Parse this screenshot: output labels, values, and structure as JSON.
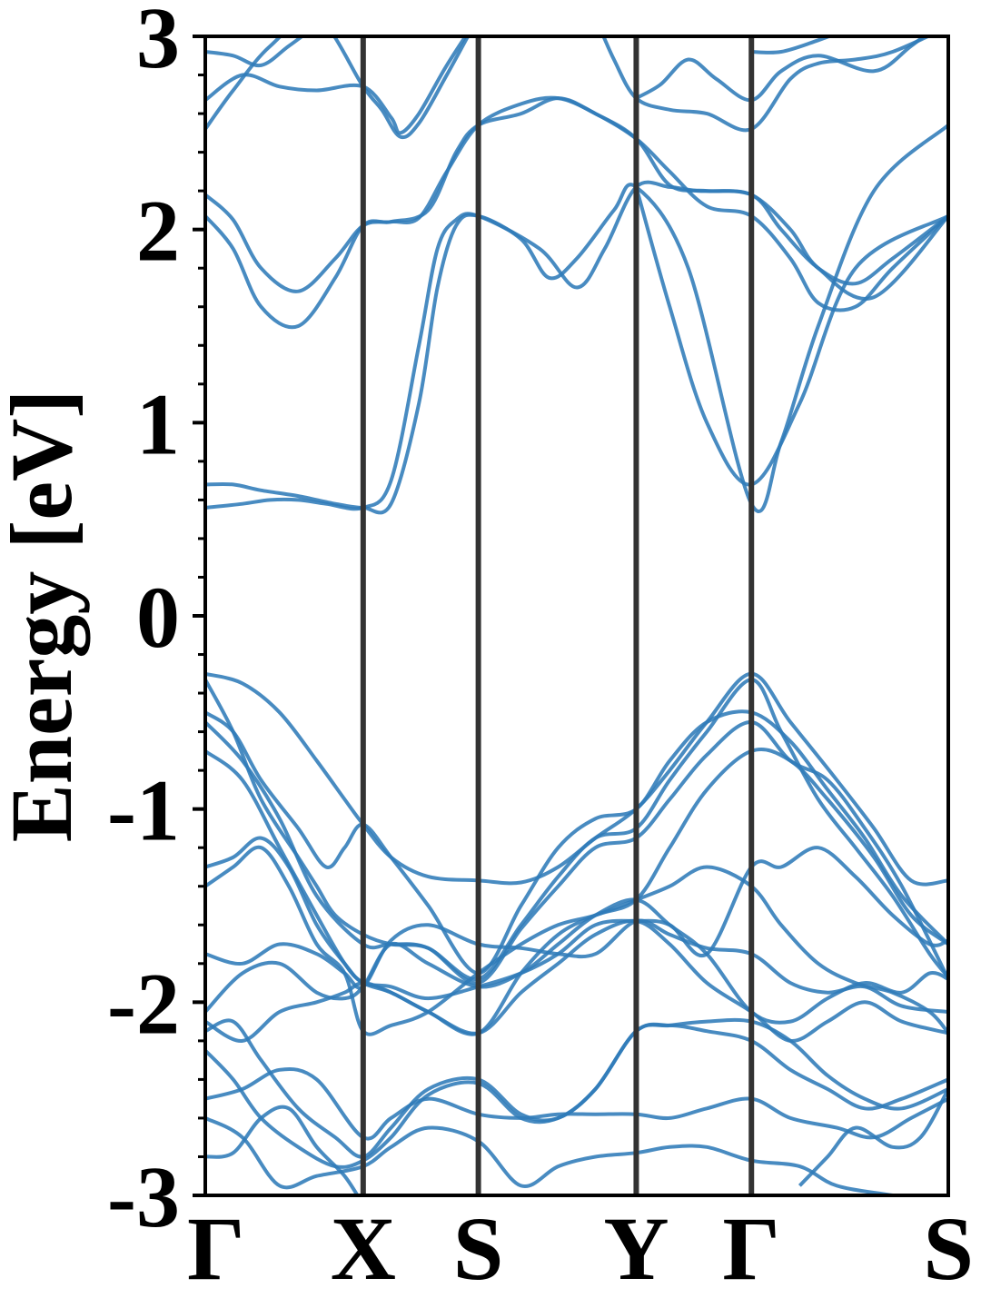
{
  "chart_data": {
    "type": "line",
    "title": "",
    "xlabel": "",
    "ylabel": "Energy [eV]",
    "ylim": [
      -3,
      3
    ],
    "yticks": [
      -3,
      -2,
      -1,
      0,
      1,
      2,
      3
    ],
    "ytick_labels": [
      "-3",
      "-2",
      "-1",
      "0",
      "1",
      "2",
      "3"
    ],
    "kpath": {
      "labels": [
        "Γ",
        "X",
        "S",
        "Y",
        "Γ",
        "S"
      ],
      "positions": [
        0,
        0.85,
        1.47,
        2.32,
        2.94,
        4.0
      ]
    },
    "grid": false,
    "legend": "none",
    "colors": {
      "band": "#2f7bb8",
      "kline": "#333333",
      "axes": "#000000"
    },
    "series": [
      {
        "x": [
          0,
          0.2,
          0.35,
          0.5,
          0.65,
          0.85,
          1.0,
          1.15,
          1.25,
          1.35,
          1.47,
          1.8,
          2.0,
          2.15,
          2.32,
          2.5,
          2.65,
          2.94,
          3.1,
          3.3,
          3.5,
          3.7,
          4.0
        ],
        "y": [
          0.56,
          0.58,
          0.6,
          0.6,
          0.58,
          0.56,
          0.7,
          1.4,
          1.9,
          2.05,
          2.07,
          1.9,
          1.7,
          1.9,
          2.22,
          2.22,
          2.2,
          2.18,
          2.0,
          1.8,
          1.72,
          1.85,
          2.07
        ]
      },
      {
        "x": [
          0,
          0.15,
          0.3,
          0.5,
          0.7,
          0.85,
          1.0,
          1.15,
          1.25,
          1.35,
          1.47,
          1.7,
          1.85,
          2.0,
          2.2,
          2.32,
          2.6,
          2.94,
          3.1,
          3.3,
          3.6,
          4.0
        ],
        "y": [
          0.68,
          0.68,
          0.65,
          0.62,
          0.58,
          0.56,
          0.58,
          1.1,
          1.7,
          2.02,
          2.07,
          1.95,
          1.75,
          1.85,
          2.1,
          2.22,
          1.8,
          0.58,
          0.9,
          1.5,
          2.2,
          2.54
        ]
      },
      {
        "x": [
          2.32,
          2.5,
          2.7,
          2.94,
          3.2,
          3.5,
          4.0
        ],
        "y": [
          2.22,
          1.6,
          1.0,
          0.68,
          1.1,
          1.8,
          2.07
        ]
      },
      {
        "x": [
          0,
          0.15,
          0.3,
          0.5,
          0.7,
          0.85,
          1.0,
          1.2,
          1.35,
          1.47,
          1.7,
          1.9,
          2.1,
          2.32,
          2.5,
          2.7,
          2.94,
          3.15,
          3.3,
          3.5,
          3.7,
          4.0
        ],
        "y": [
          2.07,
          1.9,
          1.6,
          1.5,
          1.75,
          2.02,
          2.04,
          2.1,
          2.4,
          2.54,
          2.6,
          2.68,
          2.6,
          2.47,
          2.3,
          2.12,
          2.07,
          1.85,
          1.62,
          1.6,
          1.8,
          2.07
        ]
      },
      {
        "x": [
          0,
          0.15,
          0.3,
          0.5,
          0.7,
          0.85,
          1.0,
          1.15,
          1.3,
          1.47,
          1.7,
          1.9,
          2.1,
          2.32,
          2.5,
          2.7,
          2.94,
          3.15,
          3.3,
          3.6,
          4.0
        ],
        "y": [
          2.18,
          2.05,
          1.8,
          1.68,
          1.85,
          2.02,
          2.04,
          2.06,
          2.3,
          2.54,
          2.65,
          2.68,
          2.6,
          2.47,
          2.23,
          2.2,
          2.18,
          2.0,
          1.8,
          1.65,
          2.07
        ]
      },
      {
        "x": [
          0,
          0.2,
          0.4,
          0.6,
          0.85,
          1.0,
          1.05,
          1.15,
          1.3,
          1.47
        ],
        "y": [
          2.67,
          2.8,
          2.74,
          2.72,
          2.74,
          2.58,
          2.5,
          2.6,
          2.85,
          3.1
        ]
      },
      {
        "x": [
          0,
          0.15,
          0.35,
          0.6,
          0.85,
          0.95,
          1.05,
          1.15,
          1.3,
          1.47
        ],
        "y": [
          2.52,
          2.72,
          2.95,
          3.1,
          2.74,
          2.62,
          2.48,
          2.55,
          2.8,
          3.1
        ]
      },
      {
        "x": [
          0,
          0.15,
          0.3,
          0.45,
          0.6,
          0.75
        ],
        "y": [
          2.92,
          2.9,
          2.85,
          2.95,
          3.05,
          3.1
        ]
      },
      {
        "x": [
          2.1,
          2.2,
          2.32,
          2.5,
          2.7,
          2.94,
          3.15,
          3.3,
          3.5,
          3.7,
          4.0
        ],
        "y": [
          3.1,
          2.88,
          2.68,
          2.62,
          2.6,
          2.52,
          2.78,
          2.86,
          2.88,
          2.92,
          3.05
        ]
      },
      {
        "x": [
          2.32,
          2.45,
          2.6,
          2.75,
          2.94,
          3.1,
          3.3,
          3.6,
          3.8,
          4.0
        ],
        "y": [
          2.68,
          2.75,
          2.88,
          2.78,
          2.67,
          2.82,
          2.9,
          2.82,
          2.95,
          3.1
        ]
      },
      {
        "x": [
          2.94,
          3.1,
          3.3,
          3.5,
          3.7
        ],
        "y": [
          2.92,
          2.92,
          2.98,
          3.05,
          3.1
        ]
      },
      {
        "x": [
          0,
          0.2,
          0.4,
          0.6,
          0.75,
          0.85,
          1.0,
          1.2,
          1.47,
          1.7,
          1.9,
          2.1,
          2.32,
          2.5,
          2.7,
          2.94,
          3.15,
          3.4,
          3.6,
          3.8,
          4.0
        ],
        "y": [
          -0.3,
          -0.35,
          -0.5,
          -0.75,
          -0.95,
          -1.08,
          -1.25,
          -1.35,
          -1.37,
          -1.38,
          -1.3,
          -1.15,
          -1.0,
          -0.8,
          -0.55,
          -0.3,
          -0.55,
          -0.85,
          -1.1,
          -1.37,
          -1.37
        ]
      },
      {
        "x": [
          0,
          0.15,
          0.3,
          0.5,
          0.6,
          0.7,
          0.85,
          1.0,
          1.2,
          1.47,
          1.7,
          1.9,
          2.1,
          2.32,
          2.5,
          2.7,
          2.94,
          3.1,
          3.3,
          3.5,
          3.7,
          3.9,
          4.0
        ],
        "y": [
          -0.33,
          -0.6,
          -0.95,
          -1.25,
          -1.4,
          -1.55,
          -1.65,
          -1.7,
          -1.72,
          -1.88,
          -1.6,
          -1.35,
          -1.15,
          -1.1,
          -0.85,
          -0.6,
          -0.33,
          -0.6,
          -0.95,
          -1.2,
          -1.45,
          -1.75,
          -1.87
        ]
      },
      {
        "x": [
          0,
          0.15,
          0.3,
          0.5,
          0.65,
          0.75,
          0.85,
          1.0,
          1.2,
          1.47,
          1.7,
          1.9,
          2.1,
          2.32,
          2.5,
          2.7,
          2.94,
          3.15,
          3.35,
          3.55,
          3.75,
          4.0
        ],
        "y": [
          -0.5,
          -0.6,
          -0.85,
          -1.1,
          -1.3,
          -1.2,
          -1.08,
          -1.25,
          -1.5,
          -1.85,
          -1.5,
          -1.2,
          -1.05,
          -1.0,
          -0.75,
          -0.55,
          -0.5,
          -0.65,
          -0.9,
          -1.15,
          -1.45,
          -1.7
        ]
      },
      {
        "x": [
          0,
          0.2,
          0.4,
          0.6,
          0.85,
          1.0,
          1.2,
          1.47,
          1.7,
          1.9,
          2.1,
          2.32,
          2.5,
          2.7,
          2.94,
          3.15,
          3.35,
          3.55,
          3.75,
          4.0
        ],
        "y": [
          -0.55,
          -0.75,
          -1.05,
          -1.45,
          -1.7,
          -1.7,
          -1.72,
          -1.9,
          -1.62,
          -1.4,
          -1.2,
          -1.15,
          -0.95,
          -0.72,
          -0.55,
          -0.75,
          -0.85,
          -1.1,
          -1.4,
          -1.88
        ]
      },
      {
        "x": [
          0,
          0.2,
          0.4,
          0.6,
          0.75,
          0.85,
          1.0,
          1.2,
          1.47,
          1.7,
          1.9,
          2.1,
          2.32,
          2.5,
          2.7,
          2.94,
          3.15,
          3.35,
          3.6,
          3.8,
          4.0
        ],
        "y": [
          -0.7,
          -0.85,
          -1.2,
          -1.55,
          -1.8,
          -1.9,
          -1.95,
          -2.05,
          -2.16,
          -1.85,
          -1.65,
          -1.55,
          -1.47,
          -1.2,
          -0.9,
          -0.7,
          -0.75,
          -0.95,
          -1.25,
          -1.55,
          -1.7
        ]
      },
      {
        "x": [
          0,
          0.15,
          0.3,
          0.45,
          0.6,
          0.75,
          0.85,
          1.0,
          1.2,
          1.47,
          1.7,
          1.9,
          2.1,
          2.32,
          2.5,
          2.7,
          2.94,
          3.1,
          3.3,
          3.5,
          3.7,
          3.9,
          4.0
        ],
        "y": [
          -1.3,
          -1.25,
          -1.15,
          -1.3,
          -1.6,
          -1.8,
          -1.9,
          -1.92,
          -1.98,
          -1.92,
          -1.85,
          -1.75,
          -1.6,
          -1.58,
          -1.6,
          -1.75,
          -1.3,
          -1.3,
          -1.2,
          -1.35,
          -1.55,
          -1.7,
          -1.68
        ]
      },
      {
        "x": [
          0,
          0.15,
          0.3,
          0.45,
          0.6,
          0.75,
          0.85,
          1.0,
          1.2,
          1.47,
          1.7,
          1.9,
          2.1,
          2.32,
          2.5,
          2.7,
          2.94,
          3.1,
          3.3,
          3.5,
          3.7,
          3.9,
          4.0
        ],
        "y": [
          -1.4,
          -1.3,
          -1.2,
          -1.4,
          -1.7,
          -1.85,
          -2.15,
          -2.12,
          -2.05,
          -1.85,
          -1.7,
          -1.6,
          -1.55,
          -1.47,
          -1.4,
          -1.3,
          -1.4,
          -1.6,
          -1.8,
          -1.9,
          -1.95,
          -2.05,
          -2.16
        ]
      },
      {
        "x": [
          0,
          0.2,
          0.4,
          0.6,
          0.75,
          0.85,
          1.0,
          1.2,
          1.47,
          1.7,
          1.9,
          2.1,
          2.32,
          2.5,
          2.7,
          2.94,
          3.15,
          3.35,
          3.55,
          3.75,
          4.0
        ],
        "y": [
          -1.75,
          -1.8,
          -1.7,
          -1.75,
          -1.85,
          -1.92,
          -1.68,
          -1.6,
          -1.7,
          -1.72,
          -1.75,
          -1.75,
          -1.58,
          -1.65,
          -1.72,
          -1.75,
          -1.9,
          -1.95,
          -1.92,
          -2.02,
          -2.05
        ]
      },
      {
        "x": [
          0,
          0.2,
          0.4,
          0.6,
          0.75,
          0.85,
          1.0,
          1.2,
          1.47,
          1.7,
          1.9,
          2.1,
          2.32,
          2.5,
          2.7,
          2.94,
          3.15,
          3.35,
          3.55,
          3.75,
          3.9,
          4.0
        ],
        "y": [
          -2.05,
          -1.85,
          -1.8,
          -1.95,
          -1.98,
          -1.92,
          -1.7,
          -1.8,
          -1.92,
          -1.85,
          -1.7,
          -1.55,
          -1.47,
          -1.6,
          -1.75,
          -2.05,
          -2.1,
          -1.98,
          -1.9,
          -1.95,
          -1.85,
          -1.88
        ]
      },
      {
        "x": [
          0,
          0.2,
          0.4,
          0.6,
          0.75,
          0.85,
          1.0,
          1.2,
          1.47,
          1.7,
          1.9,
          2.1,
          2.32,
          2.5,
          2.7,
          2.94,
          3.15,
          3.35,
          3.55,
          3.75,
          4.0
        ],
        "y": [
          -2.1,
          -2.2,
          -2.05,
          -2.0,
          -1.95,
          -1.9,
          -1.95,
          -2.05,
          -2.16,
          -1.95,
          -1.8,
          -1.65,
          -1.58,
          -1.7,
          -1.9,
          -2.05,
          -2.2,
          -2.1,
          -2.0,
          -2.1,
          -2.16
        ]
      },
      {
        "x": [
          0,
          0.15,
          0.3,
          0.5,
          0.7,
          0.85,
          1.0,
          1.2,
          1.47,
          1.7,
          1.9,
          2.1,
          2.32,
          2.5,
          2.7,
          2.94,
          3.15,
          3.35,
          3.55,
          3.75,
          4.0
        ],
        "y": [
          -2.15,
          -2.1,
          -2.3,
          -2.55,
          -2.7,
          -2.8,
          -2.65,
          -2.45,
          -2.4,
          -2.58,
          -2.6,
          -2.45,
          -2.15,
          -2.12,
          -2.15,
          -2.2,
          -2.35,
          -2.45,
          -2.55,
          -2.5,
          -2.4
        ]
      },
      {
        "x": [
          0,
          0.15,
          0.3,
          0.5,
          0.7,
          0.85,
          1.0,
          1.2,
          1.47,
          1.7,
          1.9,
          2.1,
          2.32,
          2.5,
          2.7,
          2.94,
          3.15,
          3.35,
          3.55,
          3.75,
          4.0
        ],
        "y": [
          -2.25,
          -2.4,
          -2.6,
          -2.75,
          -2.85,
          -2.82,
          -2.7,
          -2.48,
          -2.42,
          -2.6,
          -2.6,
          -2.45,
          -2.15,
          -2.12,
          -2.1,
          -2.1,
          -2.2,
          -2.38,
          -2.5,
          -2.55,
          -2.45
        ]
      },
      {
        "x": [
          0,
          0.2,
          0.4,
          0.6,
          0.85,
          1.0,
          1.2,
          1.47,
          1.7,
          1.9,
          2.1,
          2.32,
          2.5,
          2.7,
          2.94,
          3.15,
          3.4,
          3.6,
          3.8,
          4.0
        ],
        "y": [
          -2.5,
          -2.45,
          -2.35,
          -2.4,
          -2.7,
          -2.6,
          -2.5,
          -2.58,
          -2.6,
          -2.58,
          -2.58,
          -2.58,
          -2.6,
          -2.55,
          -2.5,
          -2.6,
          -2.65,
          -2.7,
          -2.6,
          -2.5
        ]
      },
      {
        "x": [
          0,
          0.2,
          0.4,
          0.6,
          0.85,
          1.0,
          1.2,
          1.47,
          1.7,
          1.9,
          2.1,
          2.32,
          2.5,
          2.7,
          2.94,
          3.2,
          3.4,
          3.7,
          4.0
        ],
        "y": [
          -2.6,
          -2.7,
          -2.95,
          -2.9,
          -2.85,
          -2.75,
          -2.65,
          -2.72,
          -2.95,
          -2.85,
          -2.8,
          -2.78,
          -2.75,
          -2.75,
          -2.82,
          -2.85,
          -2.95,
          -3.0,
          -3.05
        ]
      },
      {
        "x": [
          0,
          0.15,
          0.3,
          0.45,
          0.6,
          0.75,
          0.85
        ],
        "y": [
          -2.8,
          -2.78,
          -2.6,
          -2.55,
          -2.75,
          -2.9,
          -3.05
        ]
      },
      {
        "x": [
          3.2,
          3.35,
          3.5,
          3.7,
          3.85,
          4.0
        ],
        "y": [
          -2.95,
          -2.8,
          -2.65,
          -2.75,
          -2.7,
          -2.45
        ]
      }
    ]
  }
}
